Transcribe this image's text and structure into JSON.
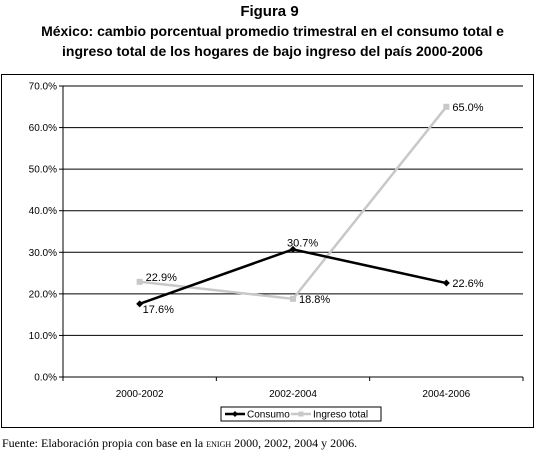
{
  "figure_label": "Figura 9",
  "title_line1": "México: cambio porcentual promedio trimestral en el consumo total e",
  "title_line2": "ingreso total de los hogares de bajo ingreso del país 2000-2006",
  "source": {
    "prefix": "Fuente: Elaboración propia con base en la ",
    "acronym": "enigh",
    "suffix": " 2000, 2002, 2004 y 2006."
  },
  "chart_data": {
    "type": "line",
    "categories": [
      "2000-2002",
      "2002-2004",
      "2004-2006"
    ],
    "ylim": [
      0,
      70
    ],
    "yticks": [
      0,
      10,
      20,
      30,
      40,
      50,
      60,
      70
    ],
    "ytick_labels": [
      "0.0%",
      "10.0%",
      "20.0%",
      "30.0%",
      "40.0%",
      "50.0%",
      "60.0%",
      "70.0%"
    ],
    "grid": true,
    "legend_position": "bottom",
    "series": [
      {
        "name": "Consumo",
        "values": [
          17.6,
          30.7,
          22.6
        ],
        "labels": [
          "17.6%",
          "30.7%",
          "22.6%"
        ],
        "color": "#000000",
        "marker": "diamond"
      },
      {
        "name": "Ingreso total",
        "values": [
          22.9,
          18.8,
          65.0
        ],
        "labels": [
          "22.9%",
          "18.8%",
          "65.0%"
        ],
        "color": "#c8c8c8",
        "marker": "square"
      }
    ]
  }
}
